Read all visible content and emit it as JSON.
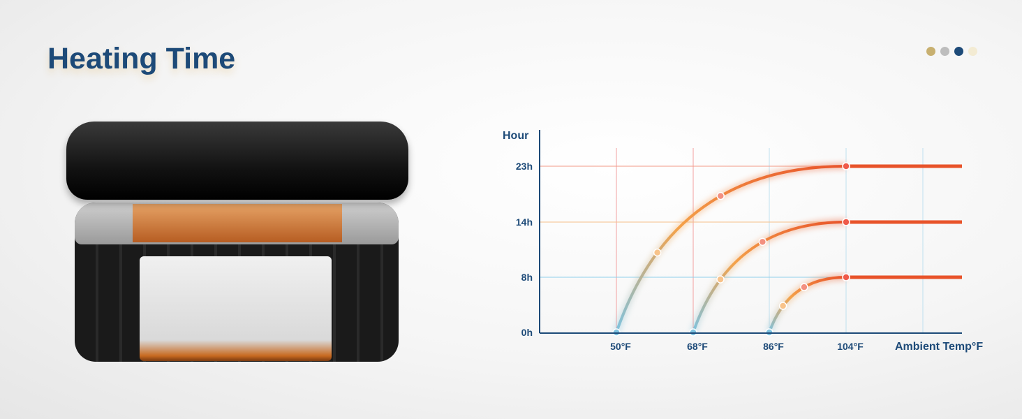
{
  "title": "Heating Time",
  "palette_dots": [
    "#c8b070",
    "#bdbdbd",
    "#1d4a78",
    "#f3ebd3"
  ],
  "chart_data": {
    "type": "line",
    "title": "",
    "ylabel": "Hour",
    "xlabel": "Ambient Temp°F",
    "y_ticks": [
      "0h",
      "8h",
      "14h",
      "23h"
    ],
    "y_values": [
      0,
      8,
      14,
      23
    ],
    "x_ticks": [
      "50°F",
      "68°F",
      "86°F",
      "104°F"
    ],
    "x_values": [
      50,
      68,
      86,
      104
    ],
    "grid": true,
    "series": [
      {
        "start": [
          50,
          0
        ],
        "end": [
          104,
          23
        ]
      },
      {
        "start": [
          68,
          0
        ],
        "end": [
          104,
          14
        ]
      },
      {
        "start": [
          86,
          0
        ],
        "end": [
          104,
          8
        ]
      }
    ],
    "colors": {
      "start": "#7ec3e0",
      "mid": "#f4a24a",
      "end": "#e8532a",
      "axis": "#1d4a78"
    }
  }
}
